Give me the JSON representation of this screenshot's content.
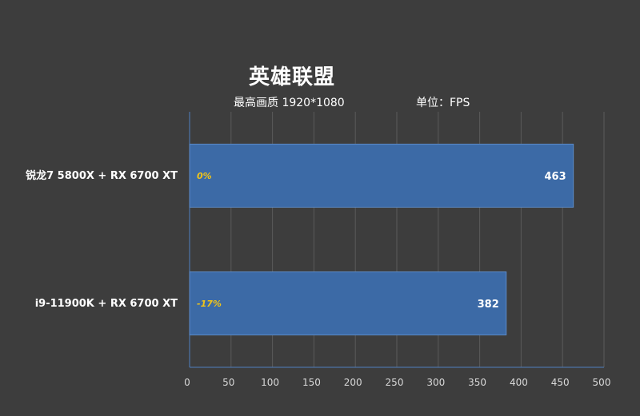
{
  "chart_data": {
    "type": "bar",
    "orientation": "horizontal",
    "title": "英雄联盟",
    "subtitle_left": "最高画质 1920*1080",
    "subtitle_right": "单位：FPS",
    "categories": [
      "锐龙7 5800X + RX 6700 XT",
      "i9-11900K + RX 6700 XT"
    ],
    "series": [
      {
        "values": [
          463,
          382
        ],
        "percent_labels": [
          "0%",
          "-17%"
        ]
      }
    ],
    "xlim": [
      0,
      500
    ],
    "x_ticks": [
      0,
      50,
      100,
      150,
      200,
      250,
      300,
      350,
      400,
      450,
      500
    ],
    "grid": true,
    "colors": {
      "background": "#3d3d3d",
      "bar": "#3c6aa6",
      "bar_border": "#5b8bc9",
      "grid": "#5a5a5a",
      "axis": "#4f7fbf",
      "percent_label": "#f0c419"
    }
  }
}
